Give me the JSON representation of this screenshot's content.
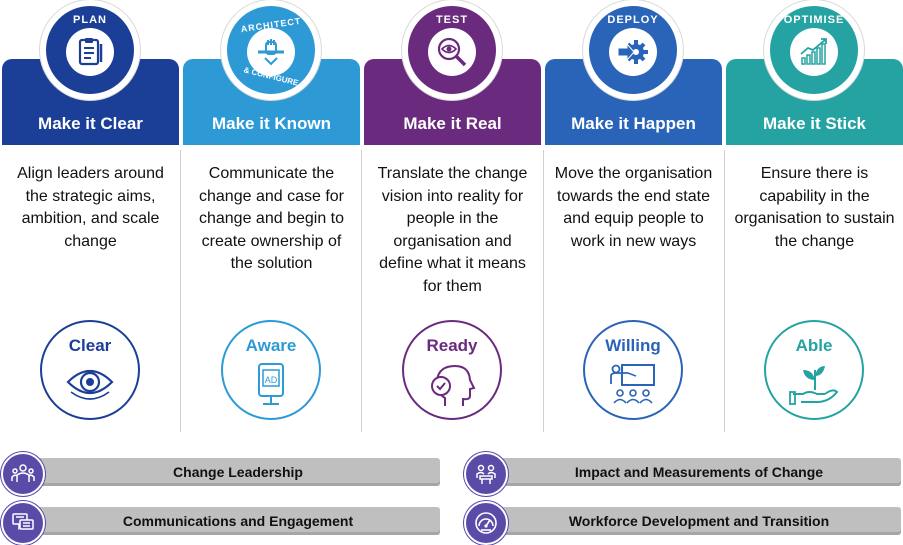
{
  "colors": {
    "plan": "#1b3f96",
    "architect": "#2d9ad6",
    "test": "#6a2a7e",
    "deploy": "#2a64b9",
    "optimise": "#25a3a3",
    "pillar": "#5b4ba8",
    "bar": "#bfbfbf"
  },
  "phases": [
    {
      "badge": "PLAN",
      "badge_icon": "clipboard-icon",
      "title": "Make it Clear",
      "description": "Align leaders around the strategic aims, ambition, and scale change",
      "outcome": "Clear",
      "outcome_icon": "eye-icon"
    },
    {
      "badge": "ARCHITECT",
      "badge_sub": "& CONFIGURE",
      "badge_icon": "hands-tool-icon",
      "title": "Make it Known",
      "description": "Communicate the change and case for change and begin to create ownership of the solution",
      "outcome": "Aware",
      "outcome_icon": "ad-board-icon"
    },
    {
      "badge": "TEST",
      "badge_icon": "magnifier-eye-icon",
      "title": "Make it Real",
      "description": "Translate the change vision into reality for people in the organisation and define what it means for them",
      "outcome": "Ready",
      "outcome_icon": "head-check-icon"
    },
    {
      "badge": "DEPLOY",
      "badge_icon": "gear-arrow-icon",
      "title": "Make it Happen",
      "description": "Move the organisation towards the end state and equip people to work in new ways",
      "outcome": "Willing",
      "outcome_icon": "training-board-icon"
    },
    {
      "badge": "OPTIMISE",
      "badge_icon": "growth-chart-icon",
      "title": "Make it Stick",
      "description": "Ensure there is capability in the organisation to sustain the change",
      "outcome": "Able",
      "outcome_icon": "hand-plant-icon"
    }
  ],
  "pillars": [
    {
      "label": "Change Leadership",
      "icon": "team-icon"
    },
    {
      "label": "Impact and Measurements of Change",
      "icon": "meeting-icon"
    },
    {
      "label": "Communications  and Engagement",
      "icon": "chat-icon"
    },
    {
      "label": "Workforce Development  and Transition",
      "icon": "gauge-icon"
    }
  ]
}
